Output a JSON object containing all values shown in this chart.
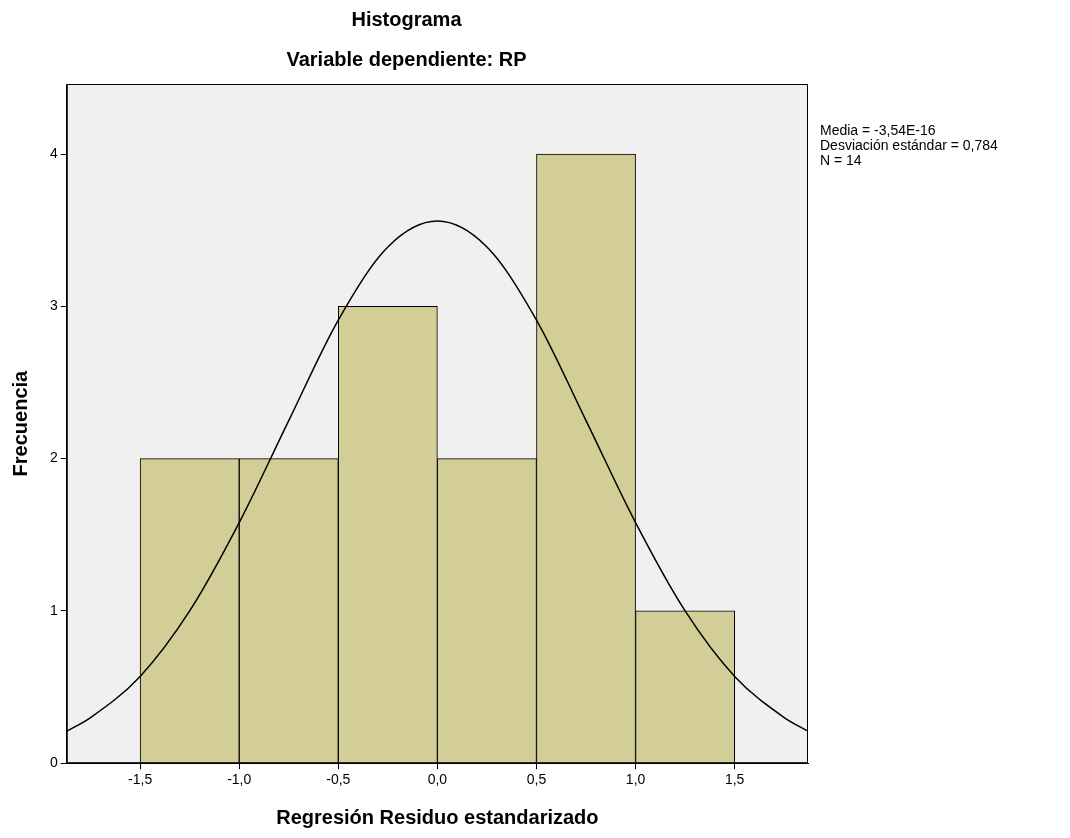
{
  "chart_data": {
    "type": "histogram",
    "title": "Histograma",
    "subtitle": "Variable dependiente: RP",
    "xlabel": "Regresión Residuo estandarizado",
    "ylabel": "Frecuencia",
    "bins": [
      -1.5,
      -1.0,
      -0.5,
      0.0,
      0.5,
      1.0,
      1.5
    ],
    "series": [
      {
        "color": "#d3ce97",
        "values": [
          2,
          2,
          3,
          2,
          4,
          1
        ]
      },
      {
        "type": "line",
        "color": "#000000",
        "marker": "none",
        "x": [
          -1.87,
          -1.75,
          -1.5,
          -1.25,
          -1.0,
          -0.75,
          -0.5,
          -0.25,
          0.0,
          0.25,
          0.5,
          0.75,
          1.0,
          1.25,
          1.5,
          1.75,
          1.87
        ],
        "values": [
          0.21,
          0.3,
          0.57,
          1.0,
          1.58,
          2.25,
          2.91,
          3.39,
          3.56,
          3.39,
          2.91,
          2.25,
          1.58,
          1.0,
          0.57,
          0.3,
          0.21
        ]
      }
    ],
    "xlim": [
      -1.87,
      1.87
    ],
    "ylim": [
      0,
      4.46
    ],
    "xticks": [
      {
        "value": -1.5,
        "label": "-1,5"
      },
      {
        "value": -1.0,
        "label": "-1,0"
      },
      {
        "value": -0.5,
        "label": "-0,5"
      },
      {
        "value": 0.0,
        "label": "0,0"
      },
      {
        "value": 0.5,
        "label": "0,5"
      },
      {
        "value": 1.0,
        "label": "1,0"
      },
      {
        "value": 1.5,
        "label": "1,5"
      }
    ],
    "yticks": [
      0,
      1,
      2,
      3,
      4
    ],
    "grid": false,
    "legend": false,
    "annotations": [
      "Media = -3,54E-16",
      "Desviación estándar = 0,784",
      "N = 14"
    ]
  }
}
